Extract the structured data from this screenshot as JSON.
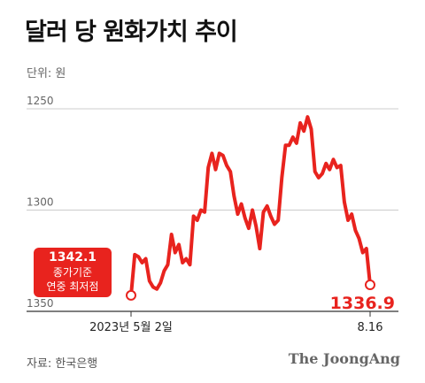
{
  "title": "달러 당 원화가치 추이",
  "unit_label": "단위: 원",
  "source": "자료: 한국은행",
  "brand": "The JoongAng",
  "callout": {
    "value": "1342.1",
    "line1": "종가기준",
    "line2": "연중 최저점"
  },
  "end_label": "1336.9",
  "colors": {
    "line": "#e8231e",
    "grid": "#cccccc",
    "axis": "#333333"
  },
  "chart_data": {
    "type": "line",
    "title": "달러 당 원화가치 추이",
    "ylabel": "단위: 원",
    "y_inverted": true,
    "ylim": [
      1250,
      1350
    ],
    "y_ticks": [
      "1250",
      "1300",
      "1350"
    ],
    "x_ticks": [
      "2023년 5월 2일",
      "8.16"
    ],
    "grid": "horizontal",
    "start_label": "1342.1",
    "end_label": "1336.9",
    "values": [
      1342.1,
      1322,
      1323,
      1326,
      1324,
      1335,
      1338,
      1339,
      1336,
      1330,
      1327,
      1312,
      1321,
      1317,
      1326,
      1324,
      1327,
      1303,
      1305,
      1300,
      1301,
      1279,
      1272,
      1280,
      1272,
      1273,
      1278,
      1281,
      1293,
      1302,
      1297,
      1304,
      1309,
      1300,
      1308,
      1319,
      1301,
      1298,
      1303,
      1307,
      1305,
      1284,
      1268,
      1268,
      1264,
      1267,
      1257,
      1261,
      1254,
      1260,
      1281,
      1284,
      1282,
      1277,
      1280,
      1275,
      1279,
      1278,
      1296,
      1305,
      1302,
      1310,
      1314,
      1321,
      1319,
      1336.9
    ]
  }
}
